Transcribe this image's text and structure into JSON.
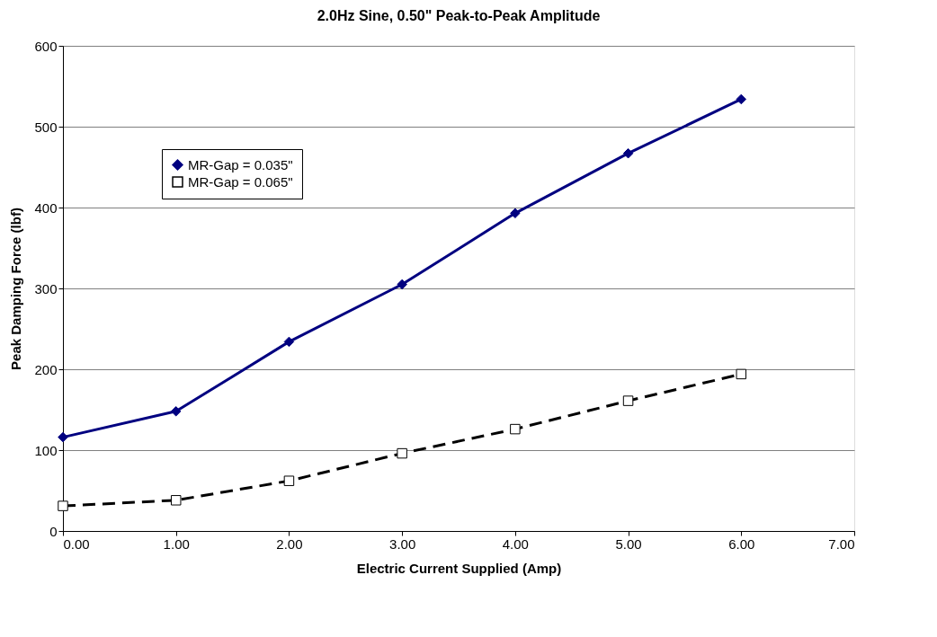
{
  "chart_data": {
    "type": "line",
    "title": "2.0Hz Sine, 0.50\" Peak-to-Peak Amplitude",
    "xlabel": "Electric Current Supplied (Amp)",
    "ylabel": "Peak Damping Force (lbf)",
    "x": [
      0,
      1,
      2,
      3,
      4,
      5,
      6
    ],
    "series": [
      {
        "name": "MR-Gap = 0.035\"",
        "color": "#000080",
        "marker": "diamond",
        "line_style": "solid",
        "values": [
          116,
          148,
          234,
          305,
          393,
          467,
          534
        ]
      },
      {
        "name": "MR-Gap = 0.065\"",
        "color": "#000000",
        "marker": "square",
        "line_style": "dashed",
        "values": [
          31,
          38,
          62,
          96,
          126,
          161,
          194
        ]
      }
    ],
    "xlim": [
      0,
      7
    ],
    "xticks": [
      {
        "value": 0,
        "label": "0.00"
      },
      {
        "value": 1,
        "label": "1.00"
      },
      {
        "value": 2,
        "label": "2.00"
      },
      {
        "value": 3,
        "label": "3.00"
      },
      {
        "value": 4,
        "label": "4.00"
      },
      {
        "value": 5,
        "label": "5.00"
      },
      {
        "value": 6,
        "label": "6.00"
      },
      {
        "value": 7,
        "label": "7.00"
      }
    ],
    "ylim": [
      0,
      600
    ],
    "yticks": [
      0,
      100,
      200,
      300,
      400,
      500,
      600
    ],
    "grid": "y",
    "legend": "top left"
  }
}
